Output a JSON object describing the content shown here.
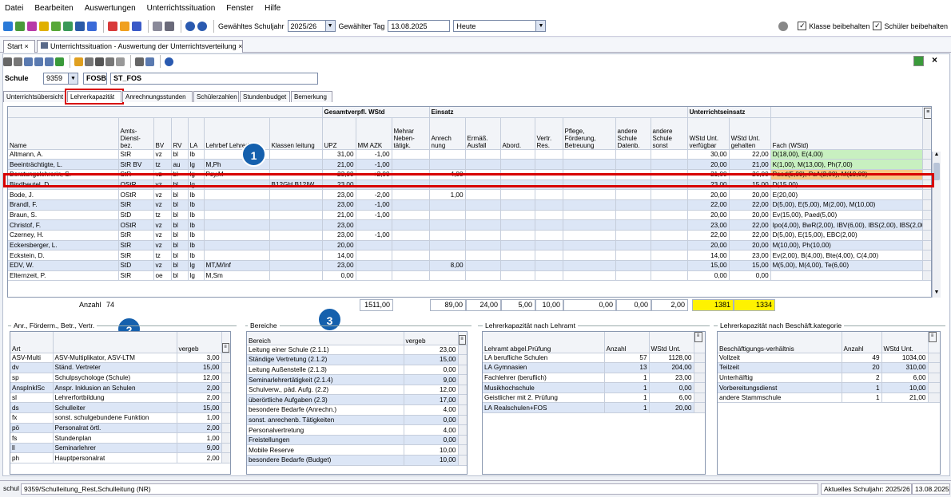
{
  "menu": [
    "Datei",
    "Bearbeiten",
    "Auswertungen",
    "Unterrichtssituation",
    "Fenster",
    "Hilfe"
  ],
  "toolbar": {
    "schuljahr_label": "Gewähltes Schuljahr",
    "schuljahr_value": "2025/26",
    "tag_label": "Gewählter Tag",
    "tag_value": "13.08.2025",
    "heute_value": "Heute",
    "klasse_label": "Klasse beibehalten",
    "schueler_label": "Schüler beibehalten"
  },
  "doc_tabs": [
    "Start",
    "Unterrichtssituation - Auswertung der Unterrichtsverteilung"
  ],
  "schule": {
    "label": "Schule",
    "nr": "9359",
    "typ": "FOSB",
    "name": "ST_FOS"
  },
  "section_tabs": [
    "Unterrichtsübersicht",
    "Lehrerkapazität",
    "Anrechnungsstunden",
    "Schülerzahlen",
    "Stundenbudget",
    "Bemerkung"
  ],
  "grid": {
    "groups": {
      "gesamt": "Gesamtverpfl. WStd",
      "einsatz": "Einsatz",
      "unterricht": "Unterrichtseinsatz"
    },
    "columns": [
      "Name",
      "Amts-Dienst-bez.",
      "BV",
      "RV",
      "LA",
      "Lehrbef Lehrerl",
      "Klassen leitung",
      "UPZ",
      "MM AZK",
      "Mehrar Neben-tätigk.",
      "Anrech nung",
      "Ermäß. Ausfall",
      "Abord.",
      "Vertr. Res.",
      "Pflege, Förderung, Betreuung",
      "andere Schule Datenb.",
      "andere Schule sonst",
      "WStd Unt. verfügbar",
      "WStd Unt. gehalten",
      "Fach (WStd)"
    ],
    "rows": [
      [
        "Altmann, A.",
        "StR",
        "vz",
        "bl",
        "lb",
        "",
        "",
        "31,00",
        "-1,00",
        "",
        "",
        "",
        "",
        "",
        "",
        "",
        "",
        "30,00",
        "22,00",
        "D(18,00), E(4,00)"
      ],
      [
        "Beeinträchtigte, L.",
        "StR BV",
        "tz",
        "au",
        "lg",
        "M,Ph",
        "",
        "21,00",
        "-1,00",
        "",
        "",
        "",
        "",
        "",
        "",
        "",
        "",
        "20,00",
        "21,00",
        "K(1,00), M(13,00), Ph(7,00)"
      ],
      [
        "Beratungslehrerin, S.",
        "StR",
        "vz",
        "bl",
        "lg",
        "Psy,M",
        "",
        "23,00",
        "+2,00",
        "",
        "4,00",
        "",
        "",
        "",
        "",
        "",
        "",
        "21,00",
        "26,00",
        "Paed(5,00), PsA(2,00), M(19,00)"
      ],
      [
        "Bindbeutel, D.",
        "OStR",
        "vz",
        "bl",
        "lg",
        "",
        "B12GH,B12IW",
        "23,00",
        "",
        "",
        "",
        "",
        "",
        "",
        "",
        "",
        "",
        "23,00",
        "15,00",
        "D(15,00)"
      ],
      [
        "Bode, J.",
        "OStR",
        "vz",
        "bl",
        "lb",
        "",
        "",
        "23,00",
        "-2,00",
        "",
        "1,00",
        "",
        "",
        "",
        "",
        "",
        "",
        "20,00",
        "20,00",
        "E(20,00)"
      ],
      [
        "Brandl, F.",
        "StR",
        "vz",
        "bl",
        "lb",
        "",
        "",
        "23,00",
        "-1,00",
        "",
        "",
        "",
        "",
        "",
        "",
        "",
        "",
        "22,00",
        "22,00",
        "D(5,00), E(5,00), M(2,00), M(10,00)"
      ],
      [
        "Braun, S.",
        "StD",
        "tz",
        "bl",
        "lb",
        "",
        "",
        "21,00",
        "-1,00",
        "",
        "",
        "",
        "",
        "",
        "",
        "",
        "",
        "20,00",
        "20,00",
        "Ev(15,00), Paed(5,00)"
      ],
      [
        "Christof, F.",
        "OStR",
        "vz",
        "bl",
        "lb",
        "",
        "",
        "23,00",
        "",
        "",
        "",
        "",
        "",
        "",
        "",
        "",
        "",
        "23,00",
        "22,00",
        "Ipo(4,00), BwR(2,00), IBV(6,00), IBS(2,00), IBS(2,00),"
      ],
      [
        "Czerney, H.",
        "StR",
        "vz",
        "bl",
        "lb",
        "",
        "",
        "23,00",
        "-1,00",
        "",
        "",
        "",
        "",
        "",
        "",
        "",
        "",
        "22,00",
        "22,00",
        "D(5,00), E(15,00), EBC(2,00)"
      ],
      [
        "Eckersberger, L.",
        "StR",
        "vz",
        "bl",
        "lb",
        "",
        "",
        "20,00",
        "",
        "",
        "",
        "",
        "",
        "",
        "",
        "",
        "",
        "20,00",
        "20,00",
        "M(10,00), Ph(10,00)"
      ],
      [
        "Eckstein, D.",
        "StR",
        "tz",
        "bl",
        "lb",
        "",
        "",
        "14,00",
        "",
        "",
        "",
        "",
        "",
        "",
        "",
        "",
        "",
        "14,00",
        "23,00",
        "Ev(2,00), B(4,00), Bte(4,00), C(4,00)"
      ],
      [
        "EDV, W.",
        "StD",
        "vz",
        "bl",
        "lg",
        "MT,M/Inf",
        "",
        "23,00",
        "",
        "",
        "8,00",
        "",
        "",
        "",
        "",
        "",
        "",
        "15,00",
        "15,00",
        "M(5,00), M(4,00), Te(6,00)"
      ],
      [
        "Elternzeit, P.",
        "StR",
        "oe",
        "bl",
        "lg",
        "M,Sm",
        "",
        "0,00",
        "",
        "",
        "",
        "",
        "",
        "",
        "",
        "",
        "",
        "0,00",
        "0,00",
        ""
      ]
    ],
    "totals": {
      "anzahl_label": "Anzahl",
      "anzahl": "74",
      "upz": "1511,00",
      "anrechnung": "89,00",
      "ermaess": "24,00",
      "abord": "5,00",
      "vertr": "10,00",
      "pflege": "0,00",
      "andere_db": "0,00",
      "andere_sonst": "2,00",
      "verfuegbar": "1381",
      "gehalten": "1334"
    }
  },
  "callouts": [
    "1",
    "2",
    "3"
  ],
  "panel_anr": {
    "title": "Anr., Förderm., Betr., Vertr.",
    "headers": [
      "Art",
      "",
      "vergeb"
    ],
    "rows": [
      [
        "ASV-Multi",
        "ASV-Multiplikator, ASV-LTM",
        "3,00"
      ],
      [
        "dv",
        "Ständ. Vertreter",
        "15,00"
      ],
      [
        "sp",
        "Schulpsychologe (Schule)",
        "12,00"
      ],
      [
        "AnspInklSc",
        "Anspr. Inklusion an Schulen",
        "2,00"
      ],
      [
        "sl",
        "Lehrerfortbildung",
        "2,00"
      ],
      [
        "ds",
        "Schulleiter",
        "15,00"
      ],
      [
        "fx",
        "sonst. schulgebundene Funktion",
        "1,00"
      ],
      [
        "pö",
        "Personalrat örtl.",
        "2,00"
      ],
      [
        "fs",
        "Stundenplan",
        "1,00"
      ],
      [
        "ll",
        "Seminarlehrer",
        "9,00"
      ],
      [
        "ph",
        "Hauptpersonalrat",
        "2,00"
      ]
    ]
  },
  "panel_bereiche": {
    "title": "Bereiche",
    "headers": [
      "Bereich",
      "vergeb"
    ],
    "rows": [
      [
        "Leitung einer Schule (2.1.1)",
        "23,00"
      ],
      [
        "Ständige Vertretung (2.1.2)",
        "15,00"
      ],
      [
        "Leitung Außenstelle (2.1.3)",
        "0,00"
      ],
      [
        "Seminarlehrertätigkeit (2.1.4)",
        "9,00"
      ],
      [
        "Schulverw., päd. Aufg. (2.2)",
        "12,00"
      ],
      [
        "überörtliche Aufgaben (2.3)",
        "17,00"
      ],
      [
        "besondere Bedarfe (Anrechn.)",
        "4,00"
      ],
      [
        "sonst. anrechenb. Tätigkeiten",
        "0,00"
      ],
      [
        "Personalvertretung",
        "4,00"
      ],
      [
        "Freistellungen",
        "0,00"
      ],
      [
        "Mobile Reserve",
        "10,00"
      ],
      [
        "besondere Bedarfe (Budget)",
        "10,00"
      ]
    ]
  },
  "panel_lehramt": {
    "title": "Lehrerkapazität nach Lehramt",
    "headers": [
      "Lehramt abgel.Prüfung",
      "Anzahl",
      "WStd Unt."
    ],
    "rows": [
      [
        "LA berufliche Schulen",
        "57",
        "1128,00"
      ],
      [
        "LA Gymnasien",
        "13",
        "204,00"
      ],
      [
        "Fachlehrer (beruflich)",
        "1",
        "23,00"
      ],
      [
        "Musikhochschule",
        "1",
        "0,00"
      ],
      [
        "Geistlicher mit 2. Prüfung",
        "1",
        "6,00"
      ],
      [
        "LA Realschulen+FOS",
        "1",
        "20,00"
      ]
    ]
  },
  "panel_beschaeft": {
    "title": "Lehrerkapazität nach Beschäft.kategorie",
    "headers": [
      "Beschäftigungs-verhältnis",
      "Anzahl",
      "WStd Unt."
    ],
    "rows": [
      [
        "Vollzeit",
        "49",
        "1034,00"
      ],
      [
        "Teilzeit",
        "20",
        "310,00"
      ],
      [
        "Unterhälftig",
        "2",
        "6,00"
      ],
      [
        "Vorbereitungsdienst",
        "1",
        "10,00"
      ],
      [
        "andere Stammschule",
        "1",
        "21,00"
      ]
    ]
  },
  "status": {
    "left": "schul",
    "path": "9359/Schulleitung_Rest,Schulleitung (NR)",
    "schuljahr": "Aktuelles Schuljahr: 2025/26",
    "datum": "13.08.2025"
  },
  "colors": {
    "accent_red": "#d80000",
    "callout_blue": "#1560ad",
    "row_alt": "#dce6f6",
    "fach_green": "#c8f0c0",
    "fach_orange": "#f7c784",
    "total_yellow": "#fff200"
  }
}
